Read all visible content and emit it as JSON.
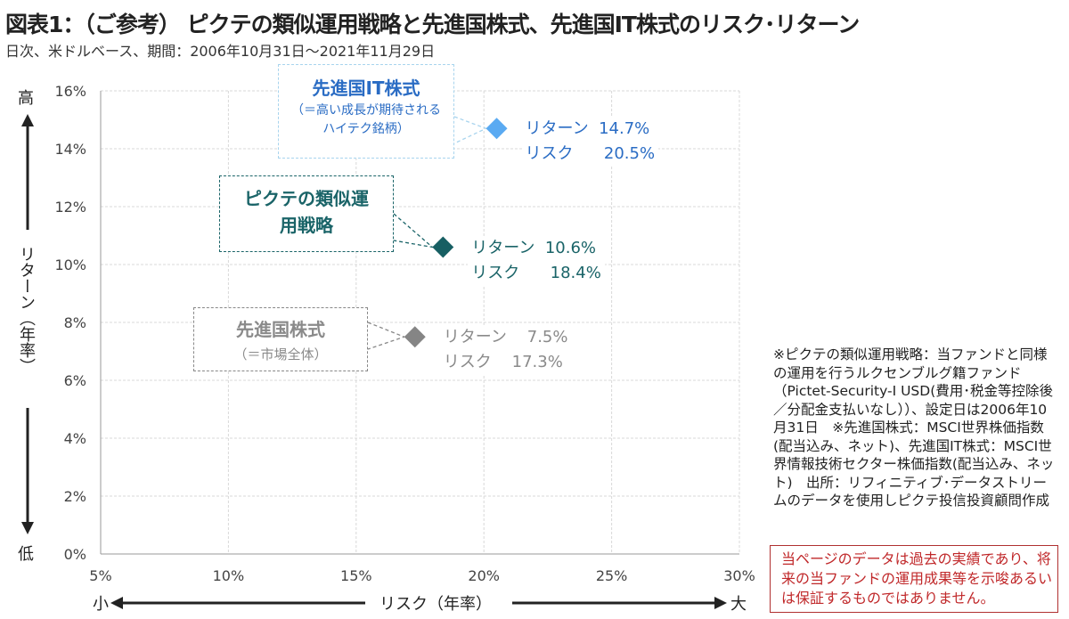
{
  "title": "図表1：（ご参考） ピクテの類似運用戦略と先進国株式、先進国IT株式のリスク･リターン",
  "subtitle": "日次、米ドルベース、期間：2006年10月31日～2021年11月29日",
  "chart_data": {
    "type": "scatter",
    "xlabel": "リスク（年率）",
    "ylabel": "リターン（年率）",
    "xlim": [
      5,
      30
    ],
    "ylim": [
      0,
      16
    ],
    "xticks": [
      "5%",
      "10%",
      "15%",
      "20%",
      "25%",
      "30%"
    ],
    "yticks": [
      "0%",
      "2%",
      "4%",
      "6%",
      "8%",
      "10%",
      "12%",
      "14%",
      "16%"
    ],
    "grid": true,
    "y_high_label": "高",
    "y_low_label": "低",
    "x_small_label": "小",
    "x_large_label": "大",
    "points": [
      {
        "name_main": "先進国IT株式",
        "name_sub": "（＝高い成長が期待されるハイテク銘柄）",
        "risk": 20.5,
        "return": 14.7,
        "value_text": "リターン  14.7%\nリスク      20.5%",
        "color": "#5aaaf2",
        "text_color": "#2a6cc4"
      },
      {
        "name_main": "ピクテの類似運用戦略",
        "name_sub": "",
        "risk": 18.4,
        "return": 10.6,
        "value_text": "リターン  10.6%\nリスク      18.4%",
        "color": "#175f63",
        "text_color": "#1a6468"
      },
      {
        "name_main": "先進国株式",
        "name_sub": "（＝市場全体）",
        "risk": 17.3,
        "return": 7.5,
        "value_text": "リターン    7.5%\nリスク    17.3%",
        "color": "#858585",
        "text_color": "#8a8a8a"
      }
    ]
  },
  "note": "※ピクテの類似運用戦略：当ファンドと同様の運用を行うルクセンブルグ籍ファンド（Pictet-Security-I USD(費用･税金等控除後／分配金支払いなし））、設定日は2006年10月31日　※先進国株式：MSCI世界株価指数(配当込み、ネット)、先進国IT株式：MSCI世界情報技術セクター株価指数(配当込み、ネット)　出所：リフィニティブ･データストリームのデータを使用しピクテ投信投資顧問作成",
  "disclaimer": "当ページのデータは過去の実績であり、将来の当ファンドの運用成果等を示唆あるいは保証するものではありません。"
}
